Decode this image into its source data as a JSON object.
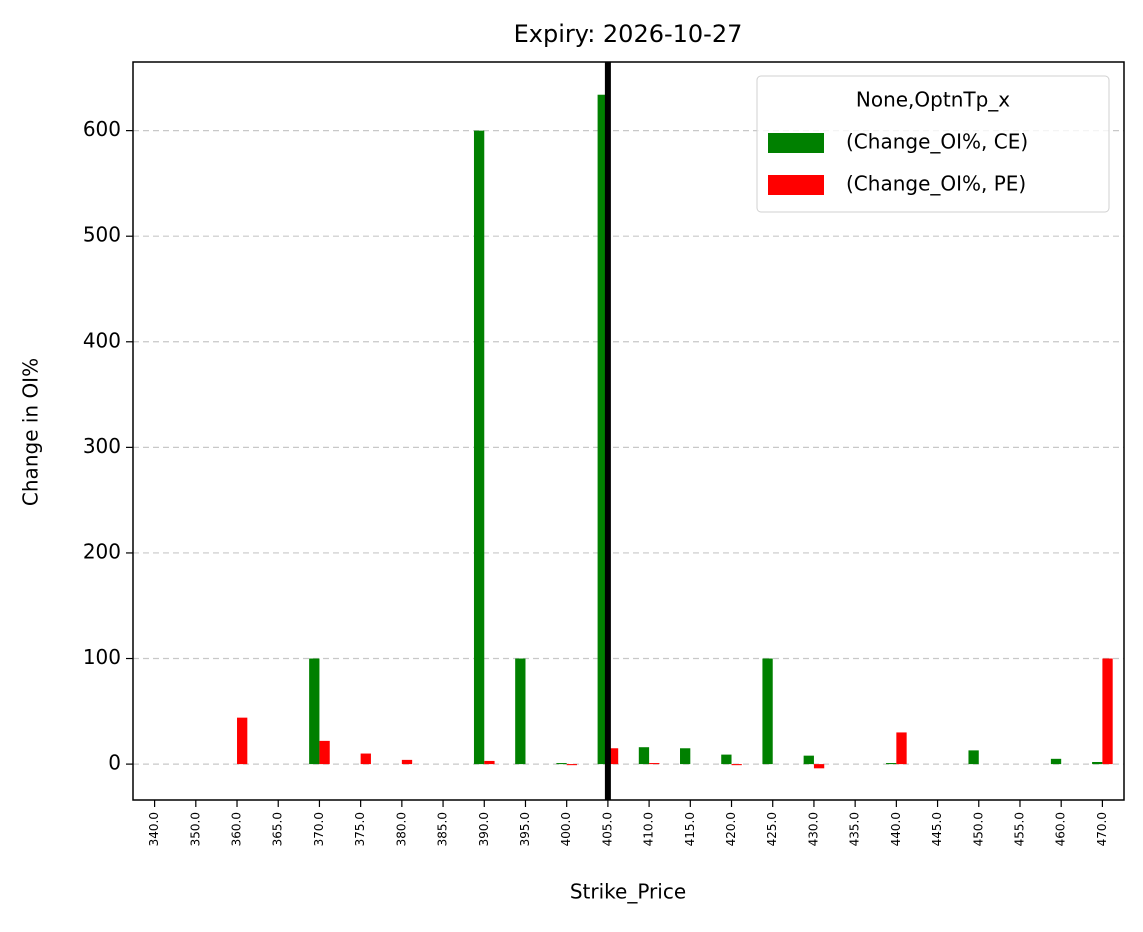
{
  "chart_data": {
    "type": "bar",
    "title": "Expiry: 2026-10-27",
    "x_label": "Strike_Price",
    "y_label": "Change in OI%",
    "categories": [
      "340.0",
      "350.0",
      "360.0",
      "365.0",
      "370.0",
      "375.0",
      "380.0",
      "385.0",
      "390.0",
      "395.0",
      "400.0",
      "405.0",
      "410.0",
      "415.0",
      "420.0",
      "425.0",
      "430.0",
      "435.0",
      "440.0",
      "445.0",
      "450.0",
      "455.0",
      "460.0",
      "470.0"
    ],
    "series": [
      {
        "name": "(Change_OI%, CE)",
        "color": "#008000",
        "values": [
          0,
          0,
          0,
          0,
          100,
          0,
          0,
          0,
          600,
          100,
          1,
          634,
          16,
          15,
          9,
          100,
          8,
          0,
          1,
          0,
          13,
          0,
          5,
          2
        ]
      },
      {
        "name": "(Change_OI%, PE)",
        "color": "#ff0000",
        "values": [
          0,
          0,
          44,
          0,
          22,
          10,
          4,
          0,
          3,
          0,
          -1,
          15,
          1,
          0,
          -1,
          0,
          -4,
          0,
          30,
          0,
          0,
          0,
          0,
          100
        ]
      }
    ],
    "legend_title": "None,OptnTp_x",
    "legend_loc": "upper right",
    "vline": 405,
    "vline_color": "#000000",
    "ylim": [
      -34,
      665
    ],
    "yticks": [
      0,
      100,
      200,
      300,
      400,
      500,
      600
    ],
    "grid": true
  }
}
